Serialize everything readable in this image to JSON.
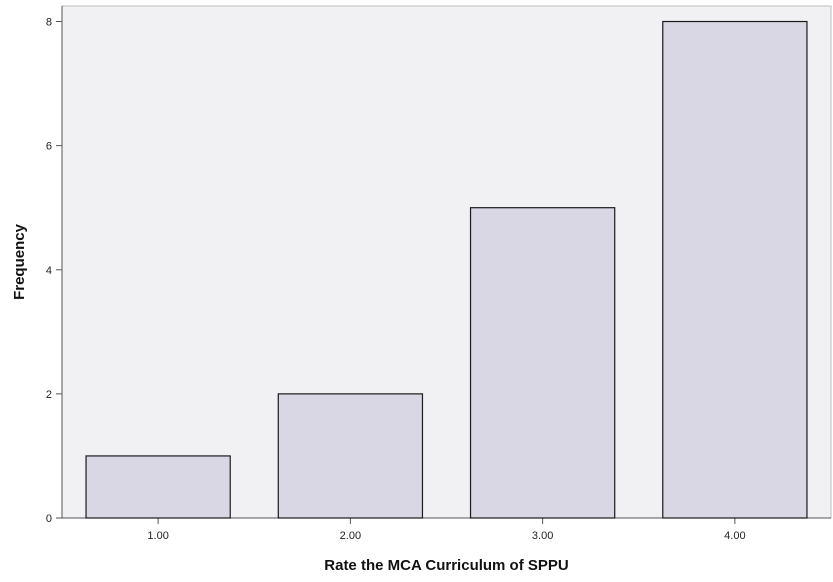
{
  "chart_data": {
    "type": "bar",
    "categories": [
      "1.00",
      "2.00",
      "3.00",
      "4.00"
    ],
    "values": [
      1,
      2,
      5,
      8
    ],
    "xlabel": "Rate the MCA Curriculum of SPPU",
    "ylabel": "Frequency",
    "ylim": [
      0,
      8.25
    ],
    "yticks": [
      0,
      2,
      4,
      6,
      8
    ],
    "grid": false,
    "legend": "none"
  },
  "colors": {
    "bar_fill": "#d9d7e4",
    "bar_stroke": "#1a1a1a",
    "plot_background": "#f1f1f4",
    "axis": "#555555"
  }
}
